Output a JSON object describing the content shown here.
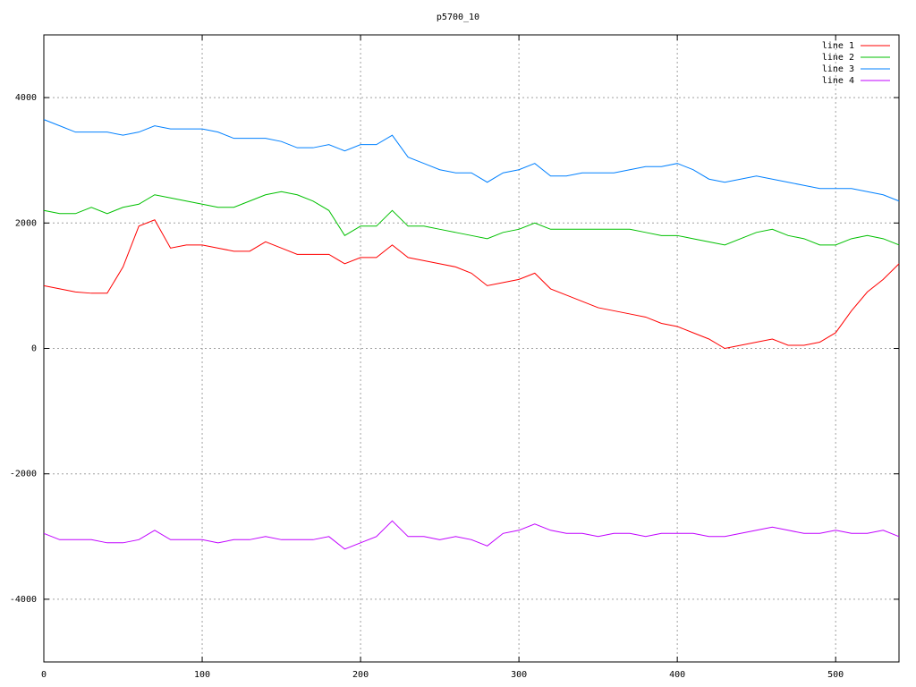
{
  "chart_data": {
    "type": "line",
    "title": "p5700_10",
    "x": [
      0,
      10,
      20,
      30,
      40,
      50,
      60,
      70,
      80,
      90,
      100,
      110,
      120,
      130,
      140,
      150,
      160,
      170,
      180,
      190,
      200,
      210,
      220,
      230,
      240,
      250,
      260,
      270,
      280,
      290,
      300,
      310,
      320,
      330,
      340,
      350,
      360,
      370,
      380,
      390,
      400,
      410,
      420,
      430,
      440,
      450,
      460,
      470,
      480,
      490,
      500,
      510,
      520,
      530,
      540
    ],
    "series": [
      {
        "name": "line 1",
        "color": "#ff0000",
        "values": [
          1000,
          950,
          900,
          880,
          880,
          1300,
          1950,
          2050,
          1600,
          1650,
          1650,
          1600,
          1550,
          1550,
          1700,
          1600,
          1500,
          1500,
          1500,
          1350,
          1450,
          1450,
          1650,
          1450,
          1400,
          1350,
          1300,
          1200,
          1000,
          1050,
          1100,
          1200,
          950,
          850,
          750,
          650,
          600,
          550,
          500,
          400,
          350,
          250,
          150,
          0,
          50,
          100,
          150,
          50,
          50,
          100,
          250,
          600,
          900,
          1100,
          1350
        ]
      },
      {
        "name": "line 2",
        "color": "#00c000",
        "values": [
          2200,
          2150,
          2150,
          2250,
          2150,
          2250,
          2300,
          2450,
          2400,
          2350,
          2300,
          2250,
          2250,
          2350,
          2450,
          2500,
          2450,
          2350,
          2200,
          1800,
          1950,
          1950,
          2200,
          1950,
          1950,
          1900,
          1850,
          1800,
          1750,
          1850,
          1900,
          2000,
          1900,
          1900,
          1900,
          1900,
          1900,
          1900,
          1850,
          1800,
          1800,
          1750,
          1700,
          1650,
          1750,
          1850,
          1900,
          1800,
          1750,
          1650,
          1650,
          1750,
          1800,
          1750,
          1650
        ]
      },
      {
        "name": "line 3",
        "color": "#0080ff",
        "values": [
          3650,
          3550,
          3450,
          3450,
          3450,
          3400,
          3450,
          3550,
          3500,
          3500,
          3500,
          3450,
          3350,
          3350,
          3350,
          3300,
          3200,
          3200,
          3250,
          3150,
          3250,
          3250,
          3400,
          3050,
          2950,
          2850,
          2800,
          2800,
          2650,
          2800,
          2850,
          2950,
          2750,
          2750,
          2800,
          2800,
          2800,
          2850,
          2900,
          2900,
          2950,
          2850,
          2700,
          2650,
          2700,
          2750,
          2700,
          2650,
          2600,
          2550,
          2550,
          2550,
          2500,
          2450,
          2350
        ]
      },
      {
        "name": "line 4",
        "color": "#c000ff",
        "values": [
          -2950,
          -3050,
          -3050,
          -3050,
          -3100,
          -3100,
          -3050,
          -2900,
          -3050,
          -3050,
          -3050,
          -3100,
          -3050,
          -3050,
          -3000,
          -3050,
          -3050,
          -3050,
          -3000,
          -3200,
          -3100,
          -3000,
          -2750,
          -3000,
          -3000,
          -3050,
          -3000,
          -3050,
          -3150,
          -2950,
          -2900,
          -2800,
          -2900,
          -2950,
          -2950,
          -3000,
          -2950,
          -2950,
          -3000,
          -2950,
          -2950,
          -2950,
          -3000,
          -3000,
          -2950,
          -2900,
          -2850,
          -2900,
          -2950,
          -2950,
          -2900,
          -2950,
          -2950,
          -2900,
          -3000
        ]
      }
    ],
    "xlim": [
      0,
      540
    ],
    "xticks": [
      0,
      100,
      200,
      300,
      400,
      500
    ],
    "ylim": [
      -5000,
      5000
    ],
    "yticks": [
      -4000,
      -2000,
      0,
      2000,
      4000
    ],
    "grid": true,
    "legend": "top-right"
  }
}
